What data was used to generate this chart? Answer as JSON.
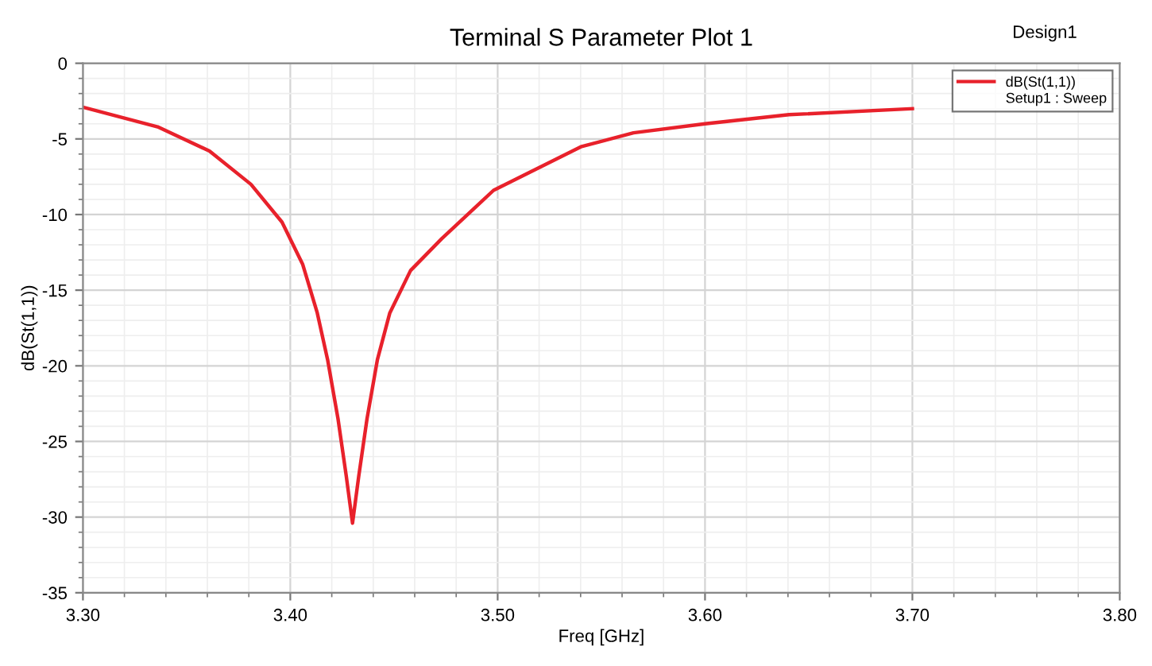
{
  "chart_data": {
    "type": "line",
    "title": "Terminal S Parameter Plot 1",
    "subtitle": "Design1",
    "xlabel": "Freq [GHz]",
    "ylabel": "dB(St(1,1))",
    "x": [
      3.3,
      3.336,
      3.361,
      3.381,
      3.396,
      3.406,
      3.413,
      3.418,
      3.423,
      3.427,
      3.43,
      3.433,
      3.437,
      3.442,
      3.448,
      3.458,
      3.473,
      3.498,
      3.5155,
      3.5405,
      3.5655,
      3.6,
      3.6405,
      3.7
    ],
    "series": [
      {
        "name": "dB(St(1,1))",
        "color": "#e8212b",
        "values": [
          -2.9,
          -4.2,
          -5.8,
          -8.0,
          -10.5,
          -13.3,
          -16.5,
          -19.6,
          -23.5,
          -27.3,
          -30.4,
          -27.3,
          -23.5,
          -19.6,
          -16.5,
          -13.7,
          -11.6,
          -8.4,
          -7.2,
          -5.5,
          -4.6,
          -4.0,
          -3.4,
          -3.0
        ]
      }
    ],
    "annotations": [
      "Setup1 : Sweep"
    ],
    "xlim": [
      3.3,
      3.8
    ],
    "ylim": [
      -35,
      0
    ],
    "xticks": [
      {
        "value": 3.3,
        "label": "3.30"
      },
      {
        "value": 3.4,
        "label": "3.40"
      },
      {
        "value": 3.5,
        "label": "3.50"
      },
      {
        "value": 3.6,
        "label": "3.60"
      },
      {
        "value": 3.7,
        "label": "3.70"
      },
      {
        "value": 3.8,
        "label": "3.80"
      }
    ],
    "yticks": [
      0,
      -5,
      -10,
      -15,
      -20,
      -25,
      -30,
      -35
    ],
    "grid": true,
    "legend": "top right",
    "marker": "none",
    "line_style": "solid"
  }
}
